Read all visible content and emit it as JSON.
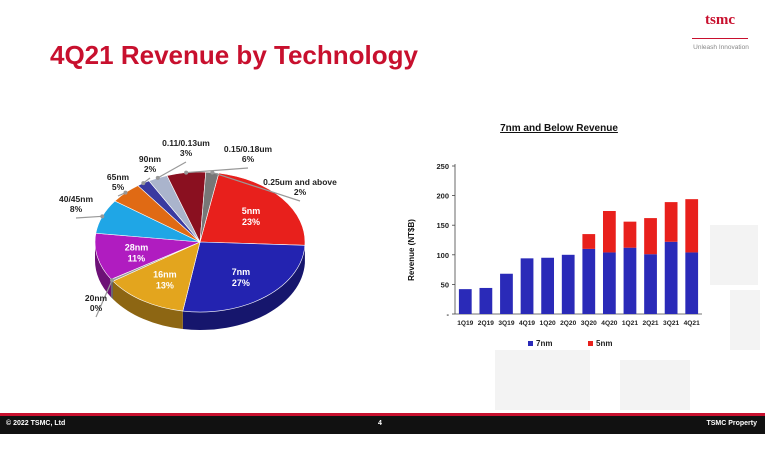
{
  "slide": {
    "title": "4Q21 Revenue by Technology",
    "logo_text": "tsmc",
    "logo_tagline": "Unleash Innovation",
    "footer_left": "© 2022 TSMC, Ltd",
    "footer_page": "4",
    "footer_right": "TSMC Property"
  },
  "colors": {
    "brand_red": "#c8102e",
    "series_7nm": "#2a2ab8",
    "series_5nm": "#e8201c"
  },
  "chart_data": [
    {
      "type": "pie",
      "title": "",
      "slices": [
        {
          "name": "5nm",
          "value": 23,
          "label": "23%",
          "color": "#e8201c"
        },
        {
          "name": "7nm",
          "value": 27,
          "label": "27%",
          "color": "#2323b0"
        },
        {
          "name": "16nm",
          "value": 13,
          "label": "13%",
          "color": "#e3a51e"
        },
        {
          "name": "20nm",
          "value": 0,
          "label": "0%",
          "color": "#9b9b9b"
        },
        {
          "name": "28nm",
          "value": 11,
          "label": "11%",
          "color": "#b01cc0"
        },
        {
          "name": "40/45nm",
          "value": 8,
          "label": "8%",
          "color": "#1fa6e6"
        },
        {
          "name": "65nm",
          "value": 5,
          "label": "5%",
          "color": "#e06a14"
        },
        {
          "name": "90nm",
          "value": 2,
          "label": "2%",
          "color": "#3a3aa0"
        },
        {
          "name": "0.11/0.13um",
          "value": 3,
          "label": "3%",
          "color": "#aab4cc"
        },
        {
          "name": "0.15/0.18um",
          "value": 6,
          "label": "6%",
          "color": "#8a1020"
        },
        {
          "name": "0.25um and above",
          "value": 2,
          "label": "2%",
          "color": "#777777"
        }
      ]
    },
    {
      "type": "bar",
      "stacked": true,
      "title": "7nm and Below Revenue",
      "ylabel": "Revenue (NT$B)",
      "xlabel": "",
      "ylim": [
        0,
        250
      ],
      "yticks": [
        "-",
        "50",
        "100",
        "150",
        "200",
        "250"
      ],
      "categories": [
        "1Q19",
        "2Q19",
        "3Q19",
        "4Q19",
        "1Q20",
        "2Q20",
        "3Q20",
        "4Q20",
        "1Q21",
        "2Q21",
        "3Q21",
        "4Q21"
      ],
      "series": [
        {
          "name": "7nm",
          "values": [
            42,
            44,
            68,
            94,
            95,
            100,
            110,
            104,
            112,
            101,
            122,
            104
          ]
        },
        {
          "name": "5nm",
          "values": [
            0,
            0,
            0,
            0,
            0,
            0,
            25,
            70,
            44,
            61,
            67,
            90
          ]
        }
      ],
      "legend": "bottom"
    }
  ]
}
